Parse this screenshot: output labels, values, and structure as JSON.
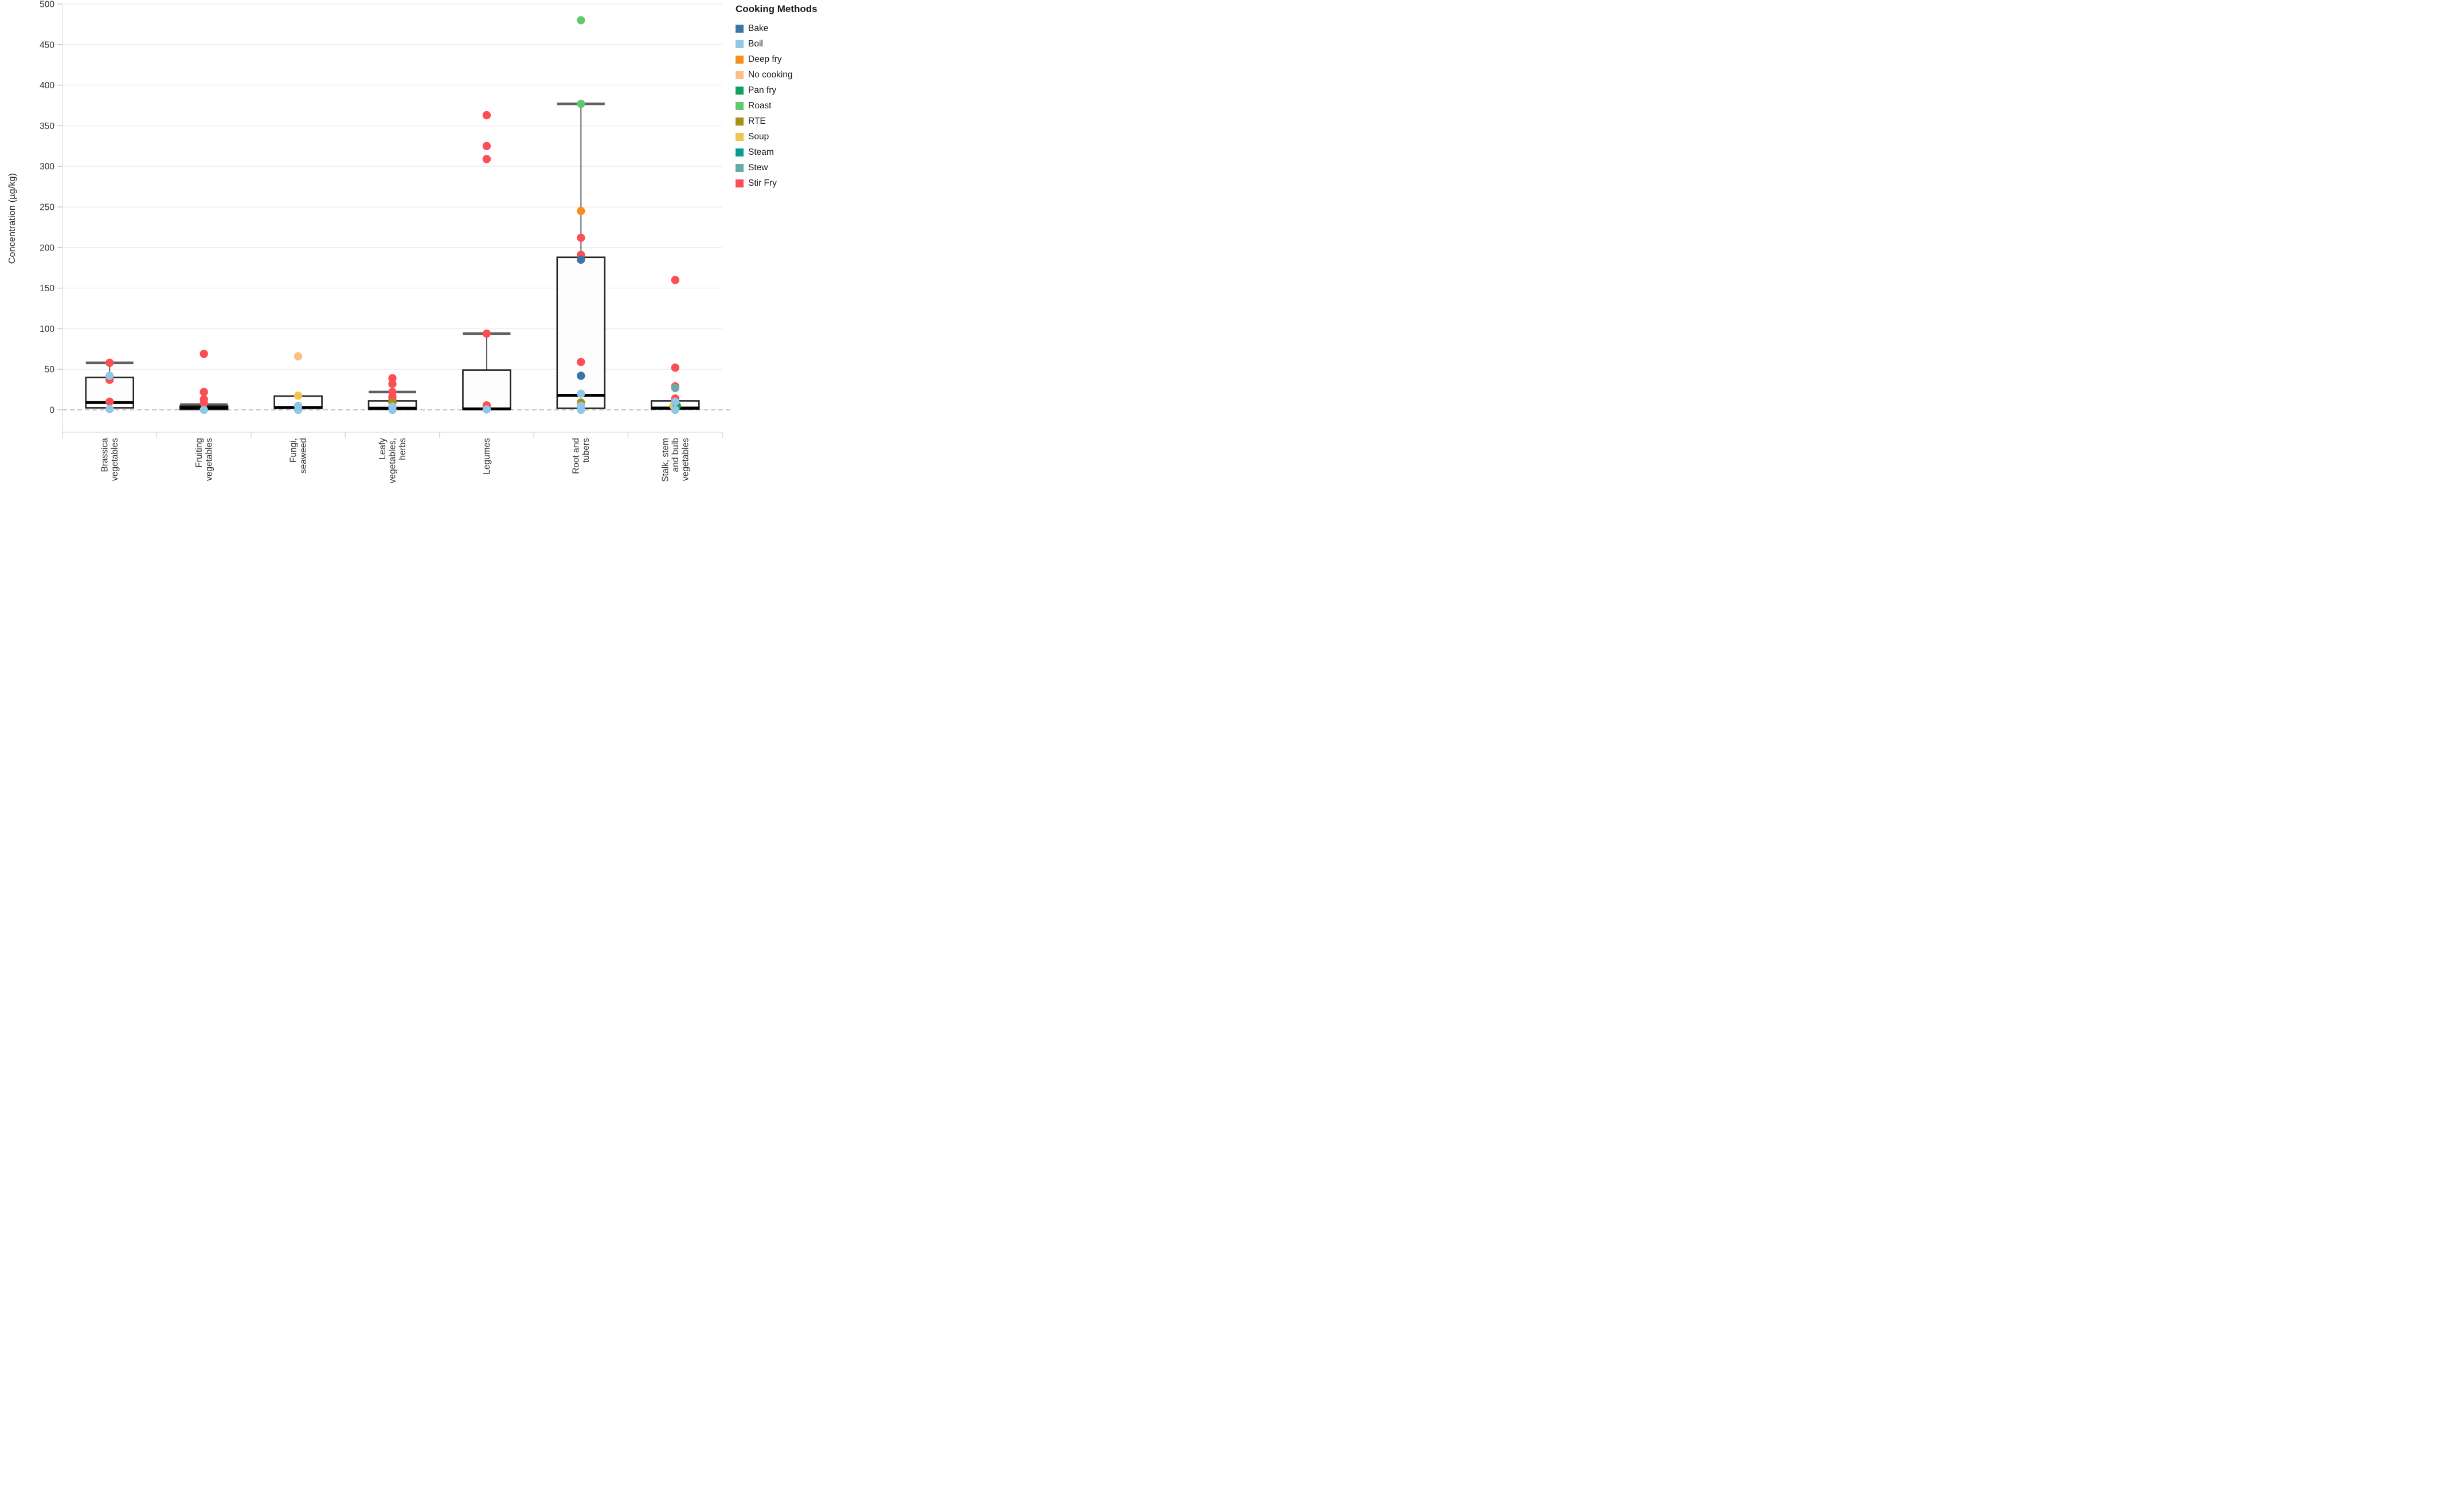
{
  "legend": {
    "title": "Cooking Methods",
    "items": [
      {
        "label": "Bake",
        "color": "#3a76a5"
      },
      {
        "label": "Boil",
        "color": "#8fc7e8"
      },
      {
        "label": "Deep fry",
        "color": "#f68d1f"
      },
      {
        "label": "No cooking",
        "color": "#fbbe85"
      },
      {
        "label": "Pan fry",
        "color": "#12a15b"
      },
      {
        "label": "Roast",
        "color": "#5fc96d"
      },
      {
        "label": "RTE",
        "color": "#a79018"
      },
      {
        "label": "Soup",
        "color": "#f3c44d"
      },
      {
        "label": "Steam",
        "color": "#0a9a8f"
      },
      {
        "label": "Stew",
        "color": "#67aca3"
      },
      {
        "label": "Stir Fry",
        "color": "#fb4e56"
      }
    ]
  },
  "chart_data": {
    "type": "box",
    "title": "",
    "y_axis": {
      "title": "Concentration (µg/kg)",
      "min": 0,
      "max": 500,
      "tick_step": 50,
      "ticks": [
        0,
        50,
        100,
        150,
        200,
        250,
        300,
        350,
        400,
        450,
        500
      ],
      "zero_reference_line": "dashed",
      "grid": true
    },
    "x_axis": {
      "categories": [
        "Brassica vegetables",
        "Fruiting vegetables",
        "Fungi, seaweed",
        "Leafy vegetables, herbs",
        "Legumes",
        "Root and tubers",
        "Stalk, stem and bulb vegetables"
      ]
    },
    "legend_position": "top-right",
    "series": [
      {
        "category": "Brassica vegetables",
        "label_lines": [
          "Brassica",
          "vegetables"
        ],
        "box": {
          "q1": 2.5,
          "median": 9,
          "q3": 40,
          "whisker_high": 58,
          "whisker_low": null
        },
        "points": [
          {
            "method": "Stir Fry",
            "value": 58
          },
          {
            "method": "Stir Fry",
            "value": 37
          },
          {
            "method": "Boil",
            "value": 42
          },
          {
            "method": "Stir Fry",
            "value": 10
          },
          {
            "method": "Boil",
            "value": 1
          }
        ]
      },
      {
        "category": "Fruiting vegetables",
        "label_lines": [
          "Fruiting",
          "vegetables"
        ],
        "box": {
          "q1": 0.5,
          "median": 2.5,
          "q3": 4.5,
          "whisker_high": 6.5,
          "whisker_low": null
        },
        "points": [
          {
            "method": "Stir Fry",
            "value": 69
          },
          {
            "method": "Stir Fry",
            "value": 22
          },
          {
            "method": "Stir Fry",
            "value": 13
          },
          {
            "method": "Stir Fry",
            "value": 8
          },
          {
            "method": "Boil",
            "value": 0
          }
        ]
      },
      {
        "category": "Fungi, seaweed",
        "label_lines": [
          "Fungi,",
          "seaweed"
        ],
        "box": {
          "q1": 2,
          "median": 3,
          "q3": 17,
          "whisker_high": null,
          "whisker_low": null
        },
        "points": [
          {
            "method": "No cooking",
            "value": 66
          },
          {
            "method": "Soup",
            "value": 17.5
          },
          {
            "method": "Boil",
            "value": 5
          },
          {
            "method": "Boil",
            "value": 0
          }
        ]
      },
      {
        "category": "Leafy vegetables, herbs",
        "label_lines": [
          "Leafy",
          "vegetables,",
          "herbs"
        ],
        "box": {
          "q1": 0.7,
          "median": 2,
          "q3": 11,
          "whisker_high": 22,
          "whisker_low": null
        },
        "points": [
          {
            "method": "Stir Fry",
            "value": 39
          },
          {
            "method": "Stir Fry",
            "value": 32
          },
          {
            "method": "Stir Fry",
            "value": 22
          },
          {
            "method": "Stir Fry",
            "value": 16
          },
          {
            "method": "Stir Fry",
            "value": 12
          },
          {
            "method": "RTE",
            "value": 9
          },
          {
            "method": "Boil",
            "value": 4
          },
          {
            "method": "Boil",
            "value": 0
          }
        ]
      },
      {
        "category": "Legumes",
        "label_lines": [
          "Legumes"
        ],
        "box": {
          "q1": 0.7,
          "median": 1.2,
          "q3": 49,
          "whisker_high": 94,
          "whisker_low": null
        },
        "points": [
          {
            "method": "Stir Fry",
            "value": 363
          },
          {
            "method": "Stir Fry",
            "value": 325
          },
          {
            "method": "Stir Fry",
            "value": 309
          },
          {
            "method": "Stir Fry",
            "value": 94
          },
          {
            "method": "Stir Fry",
            "value": 5.5
          },
          {
            "method": "Boil",
            "value": 0.5
          }
        ]
      },
      {
        "category": "Root and tubers",
        "label_lines": [
          "Root and",
          "tubers"
        ],
        "box": {
          "q1": 2,
          "median": 18,
          "q3": 188,
          "whisker_high": 377,
          "whisker_low": null
        },
        "points": [
          {
            "method": "Roast",
            "value": 480
          },
          {
            "method": "Roast",
            "value": 377
          },
          {
            "method": "Deep fry",
            "value": 245
          },
          {
            "method": "Stir Fry",
            "value": 212
          },
          {
            "method": "Stir Fry",
            "value": 191
          },
          {
            "method": "Bake",
            "value": 185
          },
          {
            "method": "Stir Fry",
            "value": 59
          },
          {
            "method": "Bake",
            "value": 42
          },
          {
            "method": "Boil",
            "value": 20
          },
          {
            "method": "RTE",
            "value": 9
          },
          {
            "method": "Boil",
            "value": 5
          },
          {
            "method": "Boil",
            "value": 0
          }
        ]
      },
      {
        "category": "Stalk, stem and bulb vegetables",
        "label_lines": [
          "Stalk, stem",
          "and bulb",
          "vegetables"
        ],
        "box": {
          "q1": 1,
          "median": 2.2,
          "q3": 11,
          "whisker_high": null,
          "whisker_low": null
        },
        "points": [
          {
            "method": "Stir Fry",
            "value": 160
          },
          {
            "method": "Stir Fry",
            "value": 52
          },
          {
            "method": "Stir Fry",
            "value": 29
          },
          {
            "method": "Stew",
            "value": 27
          },
          {
            "method": "Stir Fry",
            "value": 14
          },
          {
            "method": "Soup",
            "value": 5,
            "dx": -3
          },
          {
            "method": "Pan fry",
            "value": 5,
            "dx": 3
          },
          {
            "method": "Boil",
            "value": 10
          },
          {
            "method": "Boil",
            "value": 0
          }
        ]
      }
    ]
  },
  "style_colors": {
    "gridline": "#ececec",
    "axis_line": "#e3e3e3",
    "tick_mark": "#c9c9c9",
    "zero_dash": "#bdbdbd",
    "box_border": "#262626",
    "box_fill": "#fdfdfd",
    "median": "#000000",
    "whisker": "#5f5f5f",
    "text": "#333333"
  }
}
